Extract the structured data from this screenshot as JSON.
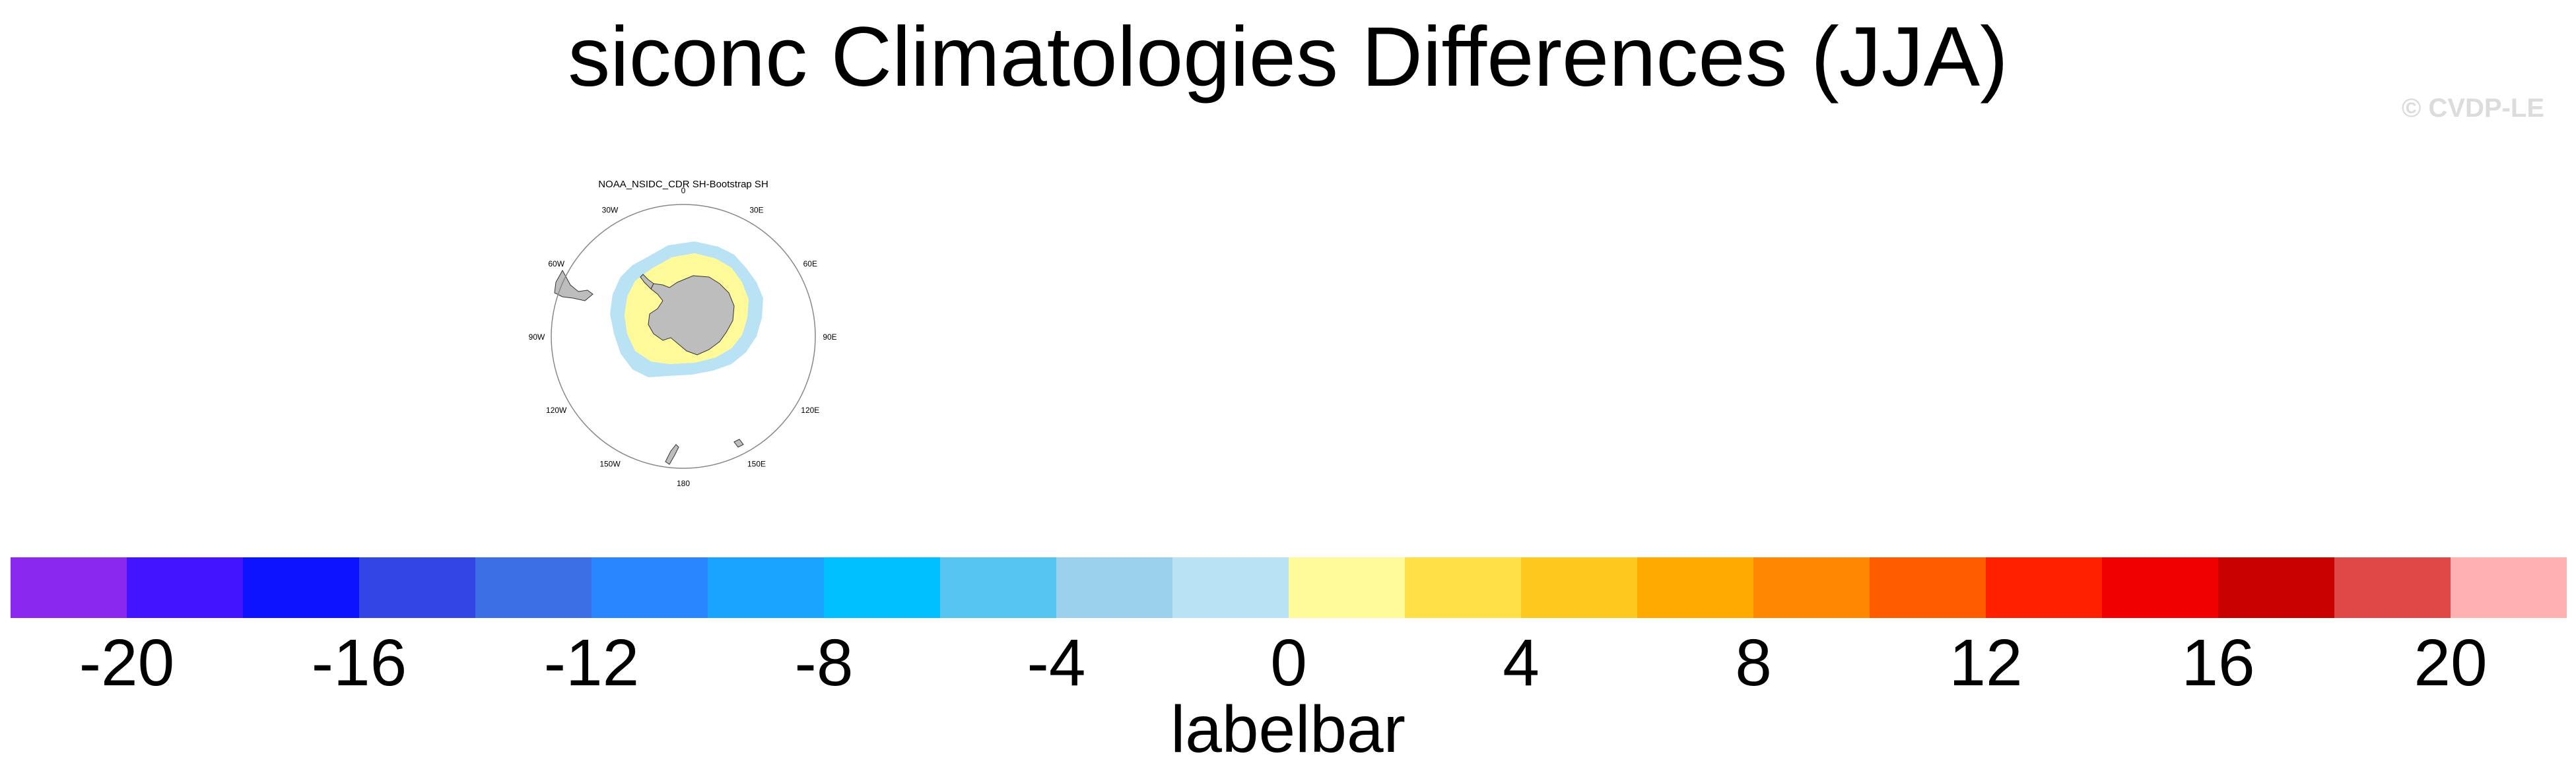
{
  "title": "siconc Climatologies Differences (JJA)",
  "watermark": "© CVDP-LE",
  "panel": {
    "title": "NOAA_NSIDC_CDR SH-Bootstrap SH",
    "longitude_labels": [
      "0",
      "30E",
      "60E",
      "90E",
      "120E",
      "150E",
      "180",
      "150W",
      "120W",
      "90W",
      "60W",
      "30W"
    ],
    "colors": {
      "land": "#bdbdbd",
      "near_zero_positive": "#fffa99",
      "near_zero_negative": "#b9e2f5",
      "frame": "#888888"
    }
  },
  "colorbar": {
    "colors": [
      "#8a28f0",
      "#4214ff",
      "#0c14ff",
      "#3246e6",
      "#3c6ee6",
      "#2a86ff",
      "#1aa2ff",
      "#00c0ff",
      "#56c4f0",
      "#9ad0ec",
      "#b9e2f5",
      "#fffa99",
      "#ffe046",
      "#ffc81e",
      "#ffaa00",
      "#ff8800",
      "#ff5c00",
      "#ff2000",
      "#f00000",
      "#c80000",
      "#e04848",
      "#ffb0b0"
    ],
    "tick_labels": [
      "-20",
      "-16",
      "-12",
      "-8",
      "-4",
      "0",
      "4",
      "8",
      "12",
      "16",
      "20"
    ],
    "label": "labelbar"
  }
}
